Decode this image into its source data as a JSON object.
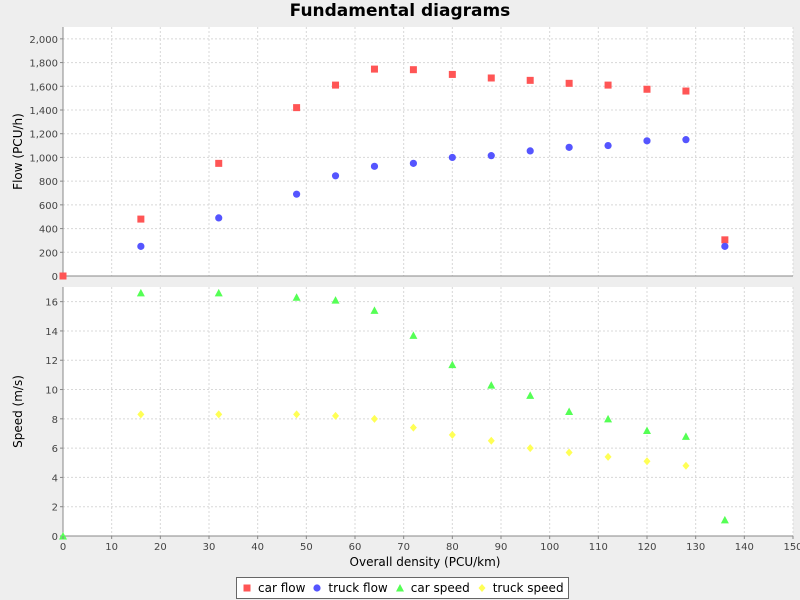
{
  "chart_data": {
    "type": "scatter",
    "title": "Fundamental diagrams",
    "xlabel": "Overall density (PCU/km)",
    "xlim": [
      0,
      150
    ],
    "xticks": [
      "0",
      "10",
      "20",
      "30",
      "40",
      "50",
      "60",
      "70",
      "80",
      "90",
      "100",
      "110",
      "120",
      "130",
      "140",
      "150"
    ],
    "grid": true,
    "legend_position": "bottom",
    "subplots": [
      {
        "ylabel": "Flow (PCU/h)",
        "ylim": [
          0,
          2100
        ],
        "yticks": [
          "0",
          "200",
          "400",
          "600",
          "800",
          "1,000",
          "1,200",
          "1,400",
          "1,600",
          "1,800",
          "2,000"
        ],
        "series": [
          {
            "name": "car flow",
            "color": "#ff5555",
            "marker": "square",
            "x": [
              0,
              16,
              32,
              48,
              56,
              64,
              72,
              80,
              88,
              96,
              104,
              112,
              120,
              128,
              136
            ],
            "y": [
              0,
              480,
              950,
              1420,
              1610,
              1745,
              1740,
              1700,
              1670,
              1650,
              1625,
              1610,
              1575,
              1560,
              305
            ]
          },
          {
            "name": "truck flow",
            "color": "#5555ff",
            "marker": "circle",
            "x": [
              16,
              32,
              48,
              56,
              64,
              72,
              80,
              88,
              96,
              104,
              112,
              120,
              128,
              136
            ],
            "y": [
              250,
              490,
              690,
              845,
              925,
              950,
              1000,
              1015,
              1055,
              1085,
              1100,
              1140,
              1150,
              250
            ]
          }
        ]
      },
      {
        "ylabel": "Speed (m/s)",
        "ylim": [
          0,
          17
        ],
        "yticks": [
          "0",
          "2",
          "4",
          "6",
          "8",
          "10",
          "12",
          "14",
          "16"
        ],
        "series": [
          {
            "name": "car speed",
            "color": "#55ff55",
            "marker": "triangle",
            "x": [
              0,
              16,
              32,
              48,
              56,
              64,
              72,
              80,
              88,
              96,
              104,
              112,
              120,
              128,
              136
            ],
            "y": [
              0,
              16.6,
              16.6,
              16.3,
              16.1,
              15.4,
              13.7,
              11.7,
              10.3,
              9.6,
              8.5,
              8.0,
              7.2,
              6.8,
              1.1
            ]
          },
          {
            "name": "truck speed",
            "color": "#ffff55",
            "marker": "diamond",
            "x": [
              16,
              32,
              48,
              56,
              64,
              72,
              80,
              88,
              96,
              104,
              112,
              120,
              128
            ],
            "y": [
              8.3,
              8.3,
              8.3,
              8.2,
              8.0,
              7.4,
              6.9,
              6.5,
              6.0,
              5.7,
              5.4,
              5.1,
              4.8
            ]
          }
        ]
      }
    ]
  }
}
